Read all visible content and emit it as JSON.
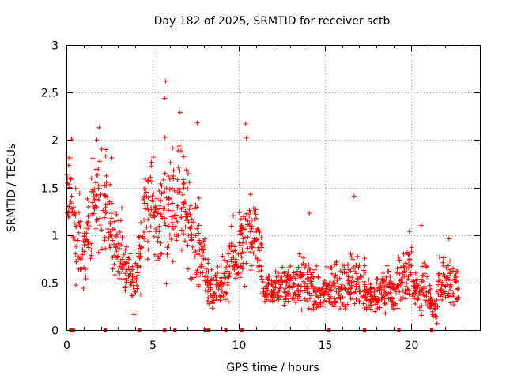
{
  "chart_data": {
    "type": "scatter",
    "title": "Day 182 of 2025, SRMTID for receiver sctb",
    "xlabel": "GPS time / hours",
    "ylabel": "SRMTID / TECUs",
    "xlim": [
      0,
      24
    ],
    "ylim": [
      0,
      3
    ],
    "xticks": [
      0,
      5,
      10,
      15,
      20
    ],
    "yticks": [
      0,
      0.5,
      1,
      1.5,
      2,
      2.5,
      3
    ],
    "xtick_labels": [
      "0",
      "5",
      "10",
      "15",
      "20"
    ],
    "ytick_labels": [
      "0",
      "0.5",
      "1",
      "1.5",
      "2",
      "2.5",
      "3"
    ],
    "grid": true,
    "marker": "+",
    "color": "#ff0000",
    "series": [
      {
        "name": "SRMTID",
        "envelope_note": "approximate per-bin mean and spread of dense data; individual points sampled",
        "bin_centers": [
          0.1,
          0.4,
          0.7,
          1.0,
          1.3,
          1.6,
          1.9,
          2.2,
          2.5,
          2.8,
          3.1,
          3.4,
          3.7,
          4.0,
          4.3,
          4.6,
          4.9,
          5.2,
          5.5,
          5.8,
          6.1,
          6.4,
          6.7,
          7.0,
          7.3,
          7.6,
          7.9,
          8.2,
          8.5,
          8.8,
          9.1,
          9.4,
          9.7,
          10.0,
          10.3,
          10.6,
          10.9,
          11.2,
          11.5,
          11.8,
          12.1,
          12.4,
          12.7,
          13.0,
          13.3,
          13.6,
          13.9,
          14.2,
          14.5,
          14.8,
          15.1,
          15.4,
          15.7,
          16.0,
          16.3,
          16.6,
          16.9,
          17.2,
          17.5,
          17.8,
          18.1,
          18.4,
          18.7,
          19.0,
          19.3,
          19.6,
          19.9,
          20.2,
          20.5,
          20.8,
          21.1,
          21.4,
          21.7,
          22.0,
          22.3,
          22.6
        ],
        "bin_mean": [
          1.45,
          1.25,
          0.95,
          0.8,
          0.9,
          1.3,
          1.45,
          1.3,
          1.2,
          1.0,
          0.8,
          0.65,
          0.55,
          0.5,
          0.9,
          1.3,
          1.35,
          1.1,
          1.2,
          1.3,
          1.4,
          1.4,
          1.35,
          1.2,
          1.0,
          0.9,
          0.75,
          0.5,
          0.4,
          0.45,
          0.55,
          0.6,
          0.75,
          0.85,
          0.85,
          0.95,
          1.05,
          0.75,
          0.4,
          0.4,
          0.45,
          0.45,
          0.45,
          0.5,
          0.45,
          0.5,
          0.5,
          0.45,
          0.4,
          0.35,
          0.4,
          0.45,
          0.5,
          0.5,
          0.45,
          0.5,
          0.55,
          0.5,
          0.4,
          0.35,
          0.4,
          0.4,
          0.45,
          0.35,
          0.5,
          0.55,
          0.65,
          0.45,
          0.4,
          0.5,
          0.3,
          0.25,
          0.45,
          0.55,
          0.55,
          0.45
        ],
        "bin_spread": [
          0.35,
          0.3,
          0.3,
          0.25,
          0.3,
          0.35,
          0.35,
          0.35,
          0.35,
          0.3,
          0.3,
          0.2,
          0.15,
          0.2,
          0.3,
          0.35,
          0.35,
          0.3,
          0.35,
          0.45,
          0.4,
          0.4,
          0.4,
          0.35,
          0.3,
          0.3,
          0.25,
          0.15,
          0.15,
          0.15,
          0.15,
          0.2,
          0.25,
          0.3,
          0.3,
          0.3,
          0.25,
          0.2,
          0.12,
          0.12,
          0.15,
          0.15,
          0.15,
          0.15,
          0.15,
          0.2,
          0.2,
          0.2,
          0.15,
          0.15,
          0.15,
          0.2,
          0.2,
          0.2,
          0.15,
          0.2,
          0.2,
          0.2,
          0.15,
          0.15,
          0.15,
          0.15,
          0.15,
          0.15,
          0.2,
          0.2,
          0.25,
          0.15,
          0.15,
          0.2,
          0.1,
          0.1,
          0.2,
          0.2,
          0.2,
          0.15
        ],
        "peaks": [
          {
            "x": 0.3,
            "y": 2.01
          },
          {
            "x": 1.9,
            "y": 2.13
          },
          {
            "x": 5.75,
            "y": 2.62
          },
          {
            "x": 5.7,
            "y": 2.44
          },
          {
            "x": 6.6,
            "y": 2.29
          },
          {
            "x": 7.6,
            "y": 2.18
          },
          {
            "x": 10.4,
            "y": 2.17
          },
          {
            "x": 10.45,
            "y": 2.02
          },
          {
            "x": 14.1,
            "y": 1.23
          },
          {
            "x": 16.7,
            "y": 1.41
          },
          {
            "x": 20.6,
            "y": 1.1
          },
          {
            "x": 22.2,
            "y": 0.96
          }
        ]
      }
    ],
    "zero_markers_x": [
      0.25,
      0.4,
      2.25,
      4.25,
      5.7,
      6.3,
      8.05,
      8.25,
      9.25,
      10.2,
      15.25,
      17.3,
      19.3,
      21.2
    ]
  }
}
